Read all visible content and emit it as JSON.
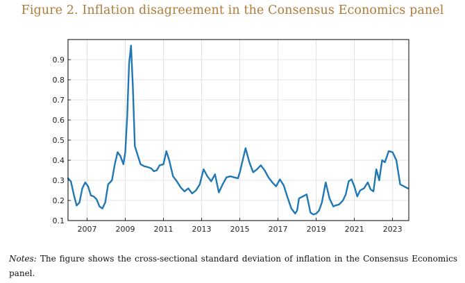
{
  "figure": {
    "title": "Figure 2.  Inflation disagreement in the Consensus Economics panel",
    "notes_label": "Notes:",
    "notes_text": "The figure shows the cross-sectional standard deviation of inflation in the Consensus Economics panel."
  },
  "chart_data": {
    "type": "line",
    "title": "",
    "xlabel": "",
    "ylabel": "",
    "xlim": [
      2006.0,
      2023.85
    ],
    "ylim": [
      0.1,
      1.0
    ],
    "xticks": [
      2007,
      2009,
      2011,
      2013,
      2015,
      2017,
      2019,
      2021,
      2023
    ],
    "yticks": [
      0.1,
      0.2,
      0.3,
      0.4,
      0.5,
      0.6,
      0.7,
      0.8,
      0.9
    ],
    "grid": true,
    "line_color": "#1f77b4",
    "series": [
      {
        "x": [
          2006.0,
          2006.15,
          2006.3,
          2006.45,
          2006.6,
          2006.75,
          2006.9,
          2007.05,
          2007.2,
          2007.35,
          2007.5,
          2007.65,
          2007.8,
          2007.95,
          2008.1,
          2008.3,
          2008.45,
          2008.6,
          2008.75,
          2008.9,
          2009.0,
          2009.1,
          2009.2,
          2009.3,
          2009.4,
          2009.5,
          2009.6,
          2009.8,
          2010.0,
          2010.2,
          2010.35,
          2010.5,
          2010.65,
          2010.8,
          2011.0,
          2011.15,
          2011.3,
          2011.5,
          2011.7,
          2011.9,
          2012.1,
          2012.3,
          2012.5,
          2012.7,
          2012.9,
          2013.1,
          2013.3,
          2013.5,
          2013.7,
          2013.9,
          2014.1,
          2014.3,
          2014.5,
          2014.7,
          2014.9,
          2015.0,
          2015.1,
          2015.3,
          2015.5,
          2015.7,
          2015.9,
          2016.1,
          2016.3,
          2016.5,
          2016.7,
          2016.9,
          2017.1,
          2017.3,
          2017.5,
          2017.7,
          2017.9,
          2018.0,
          2018.1,
          2018.3,
          2018.5,
          2018.7,
          2018.85,
          2019.0,
          2019.15,
          2019.3,
          2019.5,
          2019.7,
          2019.9,
          2020.0,
          2020.2,
          2020.4,
          2020.55,
          2020.7,
          2020.85,
          2021.0,
          2021.15,
          2021.3,
          2021.5,
          2021.7,
          2021.85,
          2022.0,
          2022.15,
          2022.3,
          2022.45,
          2022.6,
          2022.8,
          2023.0,
          2023.2,
          2023.4,
          2023.6,
          2023.8
        ],
        "y": [
          0.31,
          0.295,
          0.23,
          0.175,
          0.19,
          0.26,
          0.29,
          0.27,
          0.225,
          0.22,
          0.205,
          0.17,
          0.16,
          0.19,
          0.28,
          0.3,
          0.38,
          0.44,
          0.42,
          0.38,
          0.44,
          0.62,
          0.88,
          0.97,
          0.76,
          0.47,
          0.44,
          0.38,
          0.37,
          0.365,
          0.36,
          0.345,
          0.35,
          0.375,
          0.38,
          0.445,
          0.4,
          0.32,
          0.295,
          0.265,
          0.245,
          0.26,
          0.235,
          0.25,
          0.28,
          0.355,
          0.32,
          0.295,
          0.33,
          0.24,
          0.28,
          0.315,
          0.32,
          0.315,
          0.31,
          0.34,
          0.38,
          0.46,
          0.39,
          0.34,
          0.355,
          0.375,
          0.35,
          0.315,
          0.29,
          0.27,
          0.305,
          0.275,
          0.215,
          0.16,
          0.135,
          0.15,
          0.21,
          0.22,
          0.23,
          0.14,
          0.13,
          0.135,
          0.15,
          0.19,
          0.29,
          0.21,
          0.17,
          0.175,
          0.18,
          0.2,
          0.23,
          0.295,
          0.305,
          0.27,
          0.22,
          0.25,
          0.26,
          0.29,
          0.255,
          0.245,
          0.355,
          0.3,
          0.4,
          0.39,
          0.445,
          0.44,
          0.4,
          0.28,
          0.27,
          0.26
        ]
      }
    ]
  }
}
